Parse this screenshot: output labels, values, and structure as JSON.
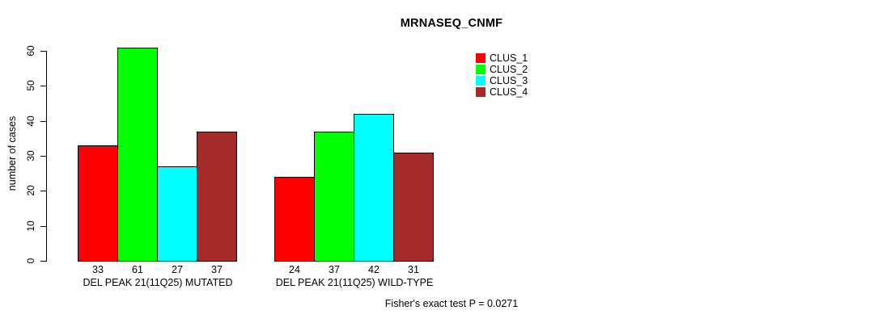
{
  "chart_data": {
    "type": "bar",
    "title": "MRNASEQ_CNMF",
    "ylabel": "number of cases",
    "xlabel": "",
    "ylim": [
      0,
      60
    ],
    "yticks": [
      0,
      10,
      20,
      30,
      40,
      50,
      60
    ],
    "grid": false,
    "legend_position": "top-right",
    "categories": [
      "DEL PEAK 21(11Q25) MUTATED",
      "DEL PEAK 21(11Q25) WILD-TYPE"
    ],
    "series": [
      {
        "name": "CLUS_1",
        "color": "#FF0000",
        "values": [
          33,
          24
        ]
      },
      {
        "name": "CLUS_2",
        "color": "#00FF00",
        "values": [
          61,
          37
        ]
      },
      {
        "name": "CLUS_3",
        "color": "#00FFFF",
        "values": [
          27,
          42
        ]
      },
      {
        "name": "CLUS_4",
        "color": "#A52A2A",
        "values": [
          37,
          31
        ]
      }
    ],
    "bar_value_labels": [
      [
        33,
        61,
        27,
        37
      ],
      [
        24,
        37,
        42,
        31
      ]
    ],
    "annotation": "Fisher's exact test P = 0.0271"
  }
}
